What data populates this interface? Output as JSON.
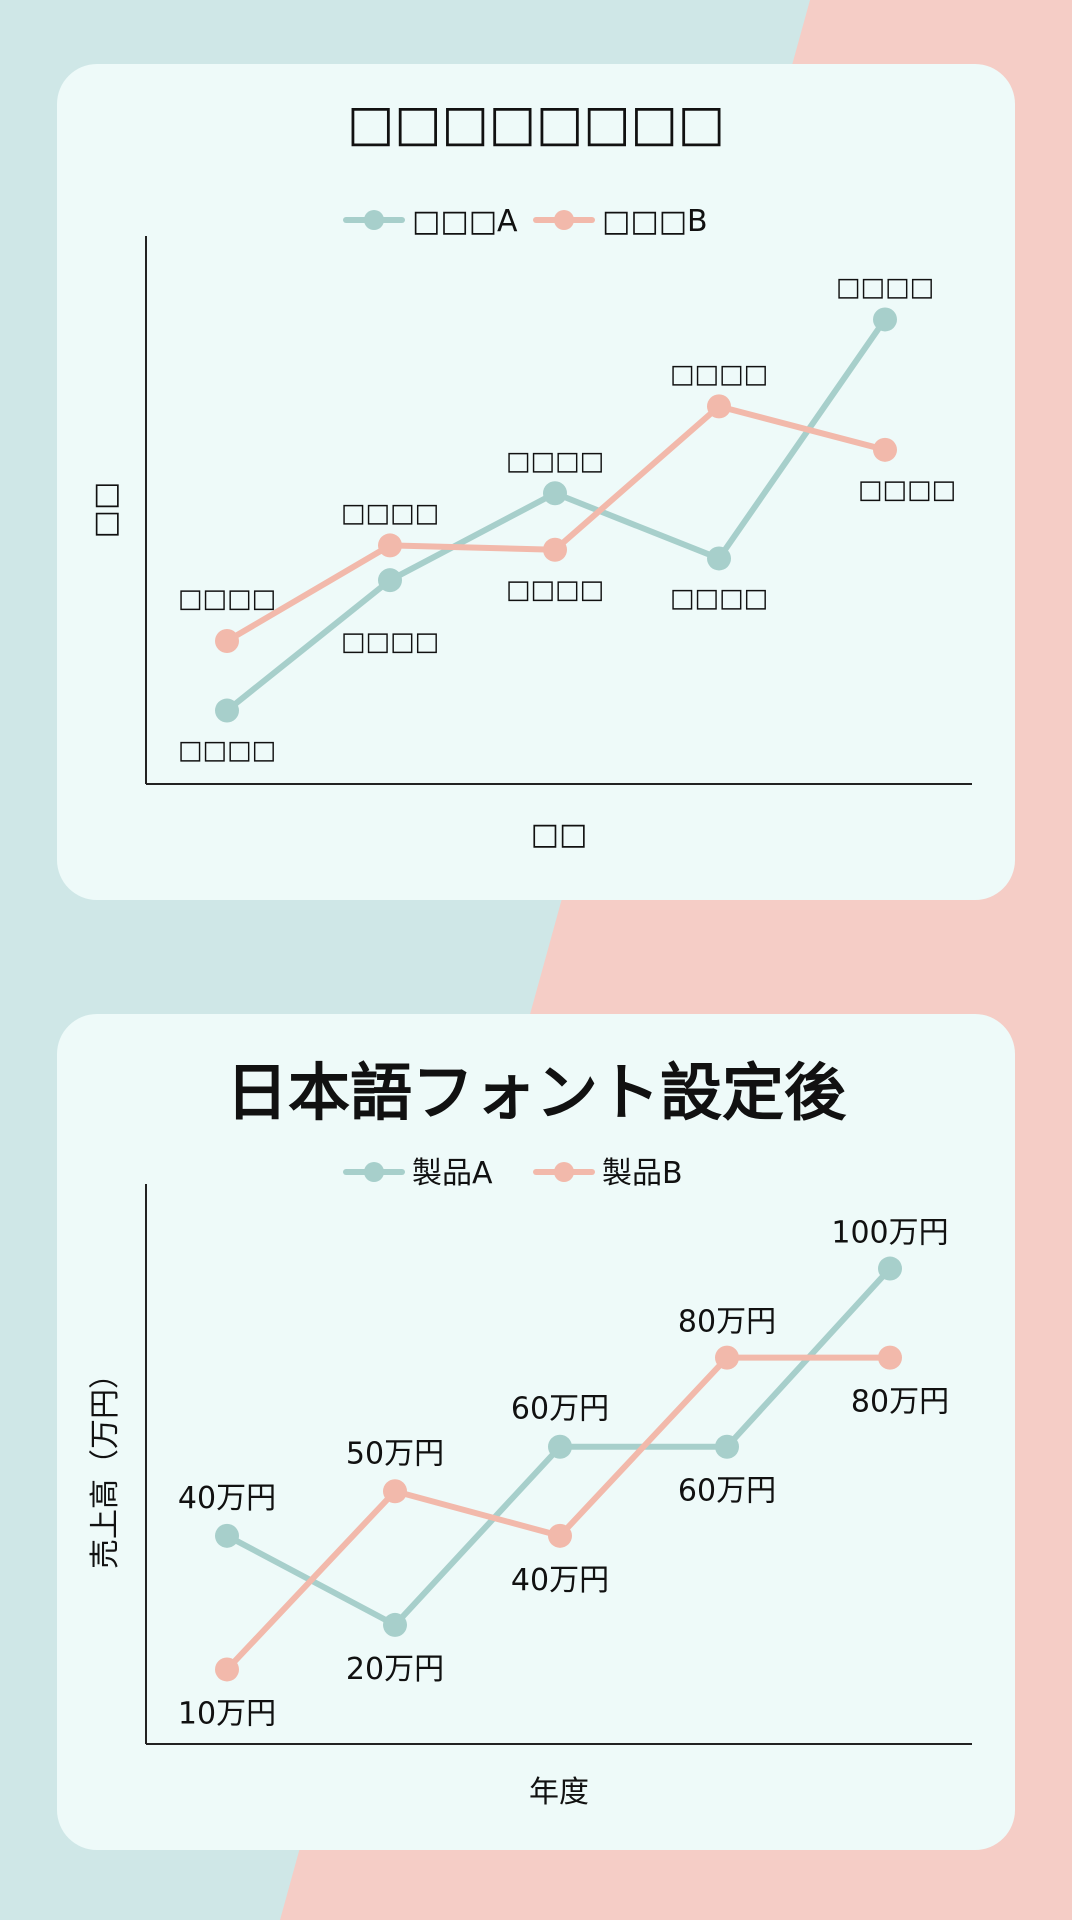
{
  "chart_data": [
    {
      "type": "line",
      "title": "□□□□□□□□",
      "xlabel": "□□",
      "ylabel": "□□",
      "categories": [
        "",
        "",
        "",
        "",
        ""
      ],
      "ylim": [
        0,
        110
      ],
      "legend_position": "top-center",
      "grid": false,
      "series": [
        {
          "name": "□□□A",
          "color": "#a7cfcb",
          "values": [
            10,
            40,
            60,
            45,
            100
          ],
          "labels": [
            "□□□□",
            "□□□□",
            "□□□□",
            "□□□□",
            "□□□□"
          ]
        },
        {
          "name": "□□□B",
          "color": "#f2b9ab",
          "values": [
            26,
            48,
            47,
            80,
            70
          ],
          "labels": [
            "□□□□",
            "□□□□",
            "□□□□",
            "□□□□",
            "□□□□"
          ]
        }
      ]
    },
    {
      "type": "line",
      "title": "日本語フォント設定後",
      "xlabel": "年度",
      "ylabel": "売上高（万円）",
      "categories": [
        "",
        "",
        "",
        "",
        ""
      ],
      "ylim": [
        0,
        110
      ],
      "legend_position": "top-center",
      "grid": false,
      "series": [
        {
          "name": "製品A",
          "color": "#a7cfcb",
          "values": [
            40,
            20,
            60,
            60,
            100
          ],
          "labels": [
            "40万円",
            "20万円",
            "60万円",
            "60万円",
            "100万円"
          ]
        },
        {
          "name": "製品B",
          "color": "#f2b9ab",
          "values": [
            10,
            50,
            40,
            80,
            80
          ],
          "labels": [
            "10万円",
            "50万円",
            "40万円",
            "80万円",
            "80万円"
          ]
        }
      ]
    }
  ]
}
